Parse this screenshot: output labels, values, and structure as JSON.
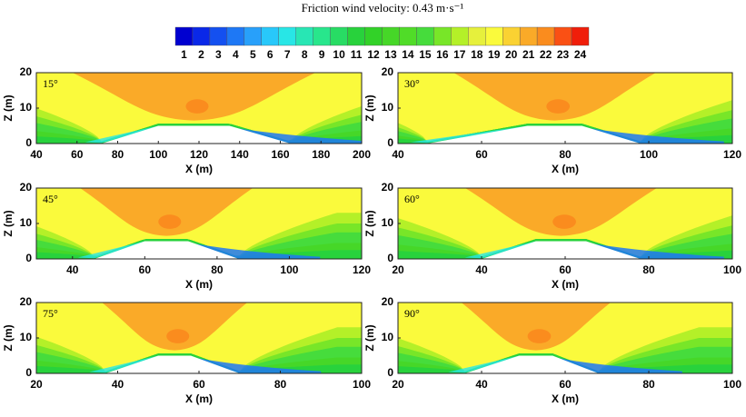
{
  "title": "Friction wind velocity: 0.43 m·s⁻¹",
  "colorbar": {
    "labels": [
      1,
      2,
      3,
      4,
      5,
      6,
      7,
      8,
      9,
      10,
      11,
      12,
      13,
      14,
      15,
      16,
      17,
      18,
      19,
      20,
      21,
      22,
      23,
      24
    ],
    "colors": [
      "#0000d0",
      "#0a28e8",
      "#1450f0",
      "#1e78f5",
      "#28a0fa",
      "#28c8fa",
      "#28e6e6",
      "#28e6b4",
      "#28e68c",
      "#28dc64",
      "#28d23c",
      "#32d228",
      "#46d728",
      "#50dc28",
      "#46dc3c",
      "#78e628",
      "#b4f028",
      "#e6f03c",
      "#fafa3c",
      "#fad232",
      "#faaa28",
      "#fa8c1e",
      "#fa5014",
      "#f01e0a"
    ]
  },
  "chart_data": [
    {
      "type": "contour",
      "label": "15°",
      "xlabel": "X (m)",
      "ylabel": "Z (m)",
      "xlim": [
        40,
        200
      ],
      "xticks": [
        40,
        60,
        80,
        100,
        120,
        140,
        160,
        180,
        200
      ],
      "ylim": [
        0,
        20
      ],
      "yticks": [
        0,
        10,
        20
      ],
      "terrain": {
        "x": [
          40,
          72,
          100,
          135,
          165,
          200
        ],
        "z": [
          0,
          0,
          5,
          5,
          0,
          0
        ]
      }
    },
    {
      "type": "contour",
      "label": "30°",
      "xlabel": "X (m)",
      "ylabel": "Z (m)",
      "xlim": [
        40,
        120
      ],
      "xticks": [
        40,
        60,
        80,
        100,
        120
      ],
      "ylim": [
        0,
        20
      ],
      "yticks": [
        0,
        10,
        20
      ],
      "terrain": {
        "x": [
          40,
          47,
          71,
          84,
          98,
          120
        ],
        "z": [
          0,
          0,
          5,
          5,
          0,
          0
        ]
      }
    },
    {
      "type": "contour",
      "label": "45°",
      "xlabel": "X (m)",
      "ylabel": "Z (m)",
      "xlim": [
        30,
        120
      ],
      "xticks": [
        40,
        60,
        80,
        100,
        120
      ],
      "ylim": [
        0,
        20
      ],
      "yticks": [
        0,
        10,
        20
      ],
      "terrain": {
        "x": [
          30,
          46,
          60,
          72,
          86,
          120
        ],
        "z": [
          0,
          0,
          5,
          5,
          0,
          0
        ]
      }
    },
    {
      "type": "contour",
      "label": "60°",
      "xlabel": "X (m)",
      "ylabel": "Z (m)",
      "xlim": [
        20,
        100
      ],
      "xticks": [
        20,
        40,
        60,
        80,
        100
      ],
      "ylim": [
        0,
        20
      ],
      "yticks": [
        0,
        10,
        20
      ],
      "terrain": {
        "x": [
          20,
          40,
          53,
          65,
          78,
          100
        ],
        "z": [
          0,
          0,
          5,
          5,
          0,
          0
        ]
      }
    },
    {
      "type": "contour",
      "label": "75°",
      "xlabel": "X (m)",
      "ylabel": "Z (m)",
      "xlim": [
        20,
        100
      ],
      "xticks": [
        20,
        40,
        60,
        80,
        100
      ],
      "ylim": [
        0,
        20
      ],
      "yticks": [
        0,
        10,
        20
      ],
      "terrain": {
        "x": [
          20,
          37,
          50,
          58,
          70,
          100
        ],
        "z": [
          0,
          0,
          5,
          5,
          0,
          0
        ]
      }
    },
    {
      "type": "contour",
      "label": "90°",
      "xlabel": "X (m)",
      "ylabel": "Z (m)",
      "xlim": [
        20,
        100
      ],
      "xticks": [
        20,
        40,
        60,
        80,
        100
      ],
      "ylim": [
        0,
        20
      ],
      "yticks": [
        0,
        10,
        20
      ],
      "terrain": {
        "x": [
          20,
          36,
          49,
          57,
          68,
          100
        ],
        "z": [
          0,
          0,
          5,
          5,
          0,
          0
        ]
      }
    }
  ]
}
